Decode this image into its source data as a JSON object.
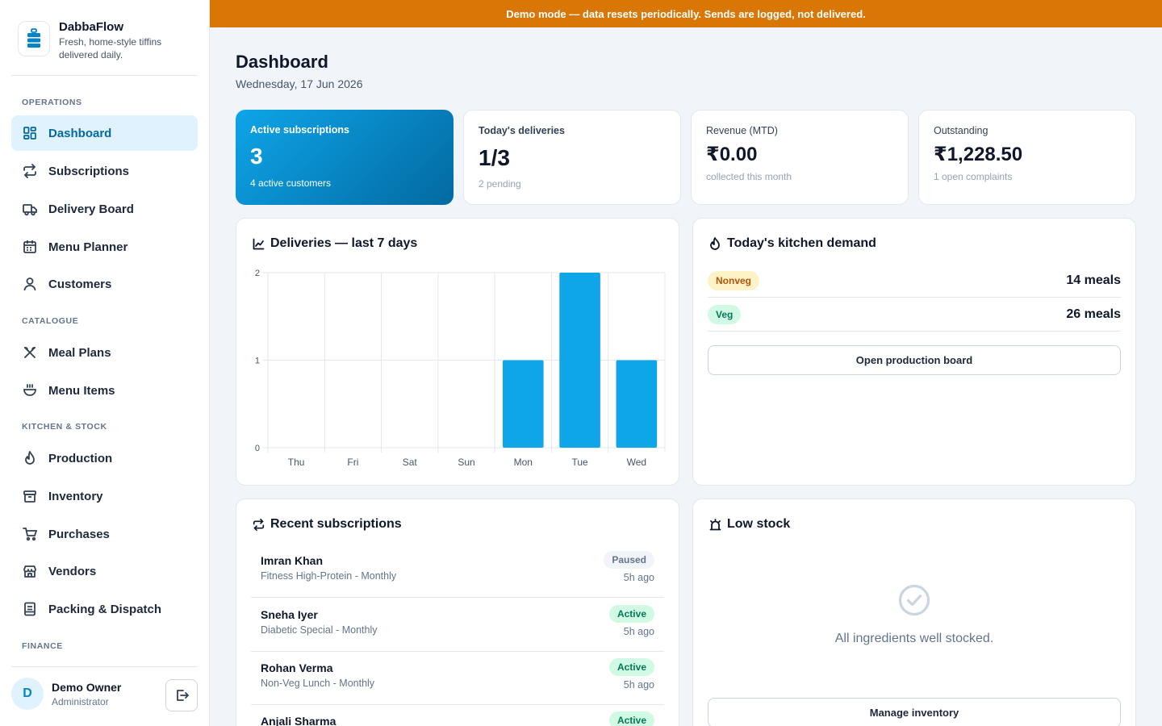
{
  "brand": {
    "name": "DabbaFlow",
    "tagline": "Fresh, home-style tiffins delivered daily."
  },
  "sidebar": {
    "sections": {
      "operations": "OPERATIONS",
      "catalogue": "CATALOGUE",
      "kitchen": "KITCHEN & STOCK",
      "finance": "FINANCE"
    },
    "items": [
      {
        "label": "Dashboard",
        "icon": "dashboard-icon"
      },
      {
        "label": "Subscriptions",
        "icon": "repeat-icon"
      },
      {
        "label": "Delivery Board",
        "icon": "truck-icon"
      },
      {
        "label": "Menu Planner",
        "icon": "calendar-icon"
      },
      {
        "label": "Customers",
        "icon": "user-icon"
      },
      {
        "label": "Meal Plans",
        "icon": "utensils-icon"
      },
      {
        "label": "Menu Items",
        "icon": "bowl-icon"
      },
      {
        "label": "Production",
        "icon": "flame-icon"
      },
      {
        "label": "Inventory",
        "icon": "archive-icon"
      },
      {
        "label": "Purchases",
        "icon": "cart-icon"
      },
      {
        "label": "Vendors",
        "icon": "store-icon"
      },
      {
        "label": "Packing & Dispatch",
        "icon": "package-icon"
      }
    ],
    "active": "Dashboard"
  },
  "user": {
    "initial": "D",
    "name": "Demo Owner",
    "role": "Administrator"
  },
  "banner": "Demo mode — data resets periodically. Sends are logged, not delivered.",
  "page": {
    "title": "Dashboard",
    "date": "Wednesday, 17 Jun 2026"
  },
  "stats": [
    {
      "title": "Active subscriptions",
      "value": "3",
      "sub": "4 active customers"
    },
    {
      "title": "Today's deliveries",
      "value": "1/3",
      "sub": "2 pending"
    },
    {
      "title": "Revenue (MTD)",
      "value": "₹0.00",
      "sub": "collected this month"
    },
    {
      "title": "Outstanding",
      "value": "₹1,228.50",
      "sub": "1 open complaints"
    }
  ],
  "deliveries_card": {
    "title": "Deliveries — last 7 days"
  },
  "chart_data": {
    "type": "bar",
    "categories": [
      "Thu",
      "Fri",
      "Sat",
      "Sun",
      "Mon",
      "Tue",
      "Wed"
    ],
    "values": [
      0,
      0,
      0,
      0,
      1,
      2,
      1
    ],
    "ylim": [
      0,
      2
    ],
    "yticks": [
      0,
      1,
      2
    ],
    "grid": true,
    "color": "#0ea5e9",
    "title": "Deliveries — last 7 days",
    "xlabel": "",
    "ylabel": ""
  },
  "demand": {
    "title": "Today's kitchen demand",
    "rows": [
      {
        "type": "Nonveg",
        "meals": "14 meals"
      },
      {
        "type": "Veg",
        "meals": "26 meals"
      }
    ],
    "button": "Open production board"
  },
  "recent": {
    "title": "Recent subscriptions",
    "rows": [
      {
        "name": "Imran Khan",
        "plan": "Fitness High-Protein - Monthly",
        "status": "Paused",
        "time": "5h ago"
      },
      {
        "name": "Sneha Iyer",
        "plan": "Diabetic Special - Monthly",
        "status": "Active",
        "time": "5h ago"
      },
      {
        "name": "Rohan Verma",
        "plan": "Non-Veg Lunch - Monthly",
        "status": "Active",
        "time": "5h ago"
      },
      {
        "name": "Anjali Sharma",
        "plan": "",
        "status": "Active",
        "time": ""
      }
    ]
  },
  "lowstock": {
    "title": "Low stock",
    "empty": "All ingredients well stocked.",
    "button": "Manage inventory"
  }
}
